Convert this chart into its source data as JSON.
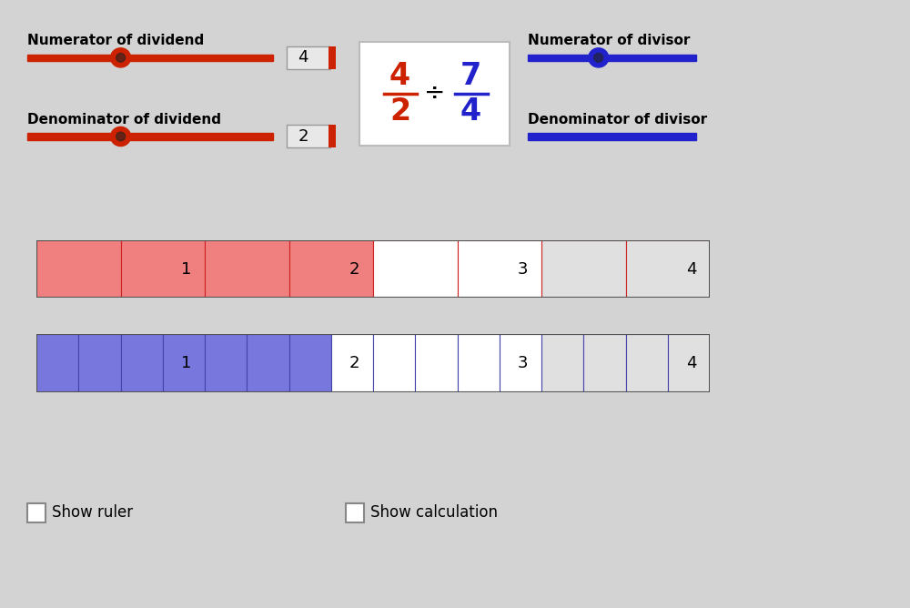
{
  "bg_outer": "#d3d3d3",
  "bg_panel": "#ffffff",
  "red_slider_label1": "Numerator of dividend",
  "red_slider_label2": "Denominator of dividend",
  "blue_slider_label1": "Numerator of divisor",
  "blue_slider_label2": "Denominator of divisor",
  "slider_color_red": "#cc2200",
  "slider_color_blue": "#2222cc",
  "dividend_num": 4,
  "dividend_den": 2,
  "divisor_num": 7,
  "divisor_den": 4,
  "red_bar_color": "#f08080",
  "red_bar_edge": "#cc2222",
  "blue_bar_color": "#7777dd",
  "blue_bar_edge": "#4444aa",
  "white_bar_color": "#ffffff",
  "grey_bar_color": "#e0e0e0",
  "total_units": 4,
  "red_filled_units": 2,
  "red_subdivisions": 2,
  "blue_filled_units": 1.75,
  "blue_subdivisions": 4
}
